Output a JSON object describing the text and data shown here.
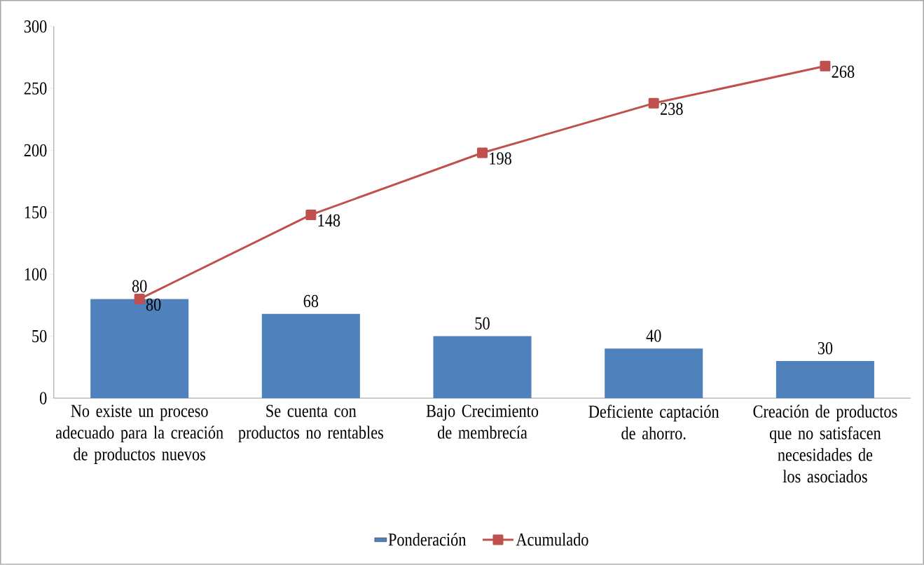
{
  "chart_data": {
    "type": "bar",
    "categories": [
      "No existe un proceso adecuado para la creación de productos nuevos",
      "Se cuenta con productos no rentables",
      "Bajo Crecimiento de membrecía",
      "Deficiente captación de ahorro.",
      "Creación de productos que no satisfacen necesidades de los asociados"
    ],
    "series": [
      {
        "name": "Ponderación",
        "type": "bar",
        "color": "#4f81bd",
        "values": [
          80,
          68,
          50,
          40,
          30
        ]
      },
      {
        "name": "Acumulado",
        "type": "line",
        "color": "#c0504d",
        "marker": "square",
        "values": [
          80,
          148,
          198,
          238,
          268
        ]
      }
    ],
    "ylim": [
      0,
      300
    ],
    "yticks": [
      0,
      50,
      100,
      150,
      200,
      250,
      300
    ],
    "data_labels": true,
    "legend": "bottom"
  }
}
